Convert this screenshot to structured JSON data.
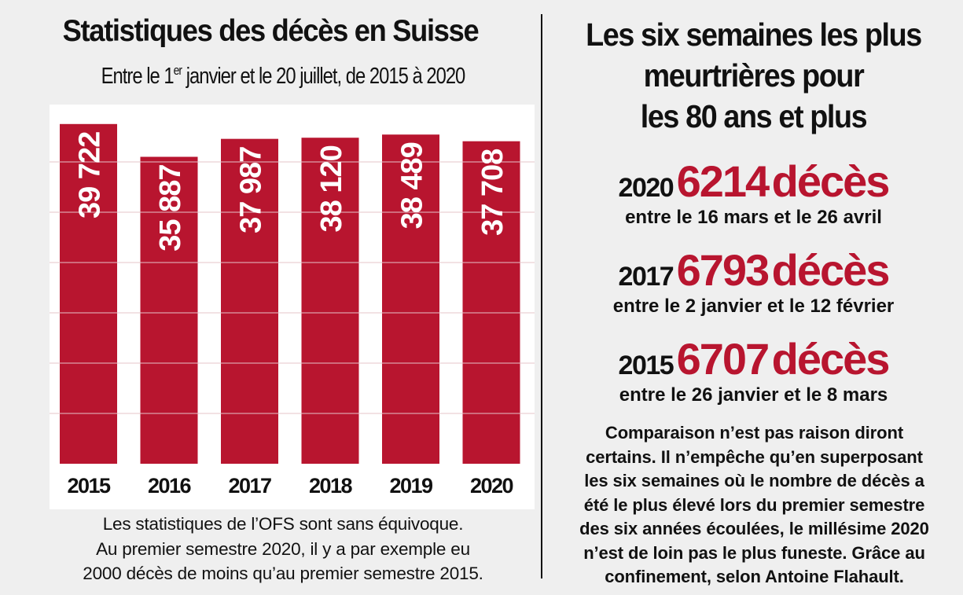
{
  "left": {
    "title": "Statistiques des décès en Suisse",
    "subtitle_start": "Entre le 1",
    "subtitle_sup": "er",
    "subtitle_end": " janvier et le 20 juillet, de 2015 à 2020",
    "caption_lines": [
      "Les statistiques de l’OFS sont sans équivoque.",
      "Au premier semestre 2020, il y a par exemple eu",
      "2000 décès de moins qu’au premier semestre 2015."
    ]
  },
  "chart_data": {
    "type": "bar",
    "title": "Statistiques des décès en Suisse",
    "subtitle": "Entre le 1er janvier et le 20 juillet, de 2015 à 2020",
    "categories": [
      "2015",
      "2016",
      "2017",
      "2018",
      "2019",
      "2020"
    ],
    "values": [
      39722,
      35887,
      37987,
      38120,
      38489,
      37708
    ],
    "value_labels": [
      "39 722",
      "35 887",
      "37 987",
      "38 120",
      "38 489",
      "37 708"
    ],
    "ylim": [
      0,
      42000
    ],
    "grid": true,
    "bar_color": "#b8152f"
  },
  "right": {
    "title_lines": [
      "Les six semaines les plus",
      "meurtrières pour",
      "les 80 ans et plus"
    ],
    "stats": [
      {
        "year": "2020",
        "value": "6214",
        "unit": "décès",
        "period": "entre le 16 mars et le 26 avril"
      },
      {
        "year": "2017",
        "value": "6793",
        "unit": "décès",
        "period": "entre le 2 janvier et le 12 février"
      },
      {
        "year": "2015",
        "value": "6707",
        "unit": "décès",
        "period": "entre le 26 janvier et le 8 mars"
      }
    ],
    "caption_lines": [
      "Comparaison n’est pas raison diront",
      "certains. Il n’empêche qu’en superposant",
      "les six semaines où le nombre de décès a",
      "été le plus élevé lors du premier semestre",
      "des six années écoulées, le millésime 2020",
      "n’est de loin pas le plus funeste. Grâce au",
      "confinement, selon Antoine Flahault."
    ]
  },
  "colors": {
    "accent": "#b8152f",
    "background": "#efefef",
    "chart_bg": "#ffffff",
    "text": "#111111"
  }
}
